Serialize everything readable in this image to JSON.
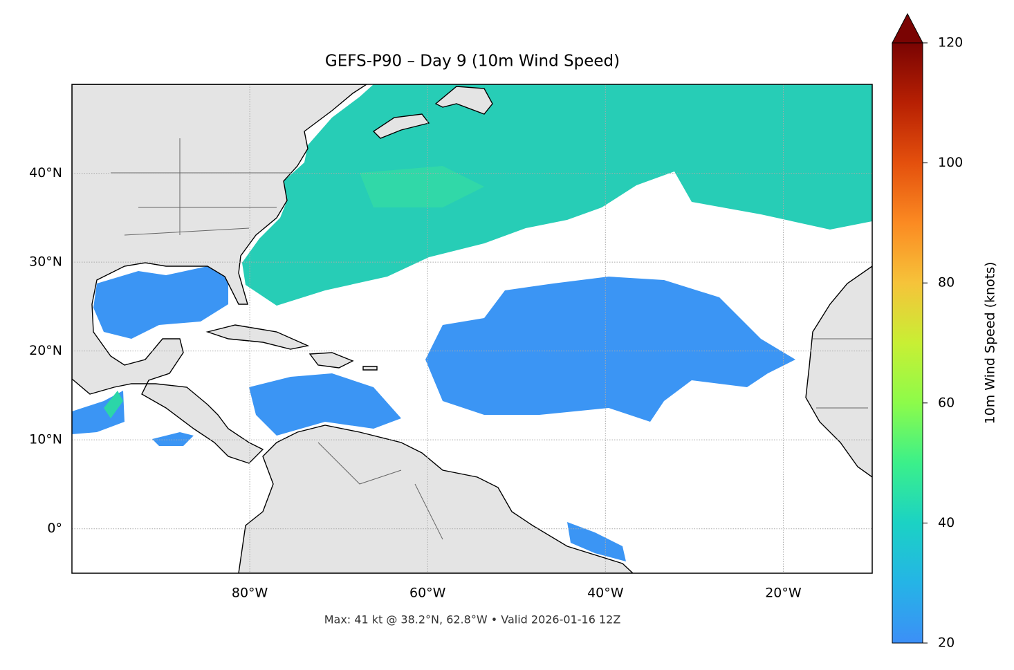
{
  "chart_data": {
    "type": "map",
    "title": "GEFS-P90 – Day 9 (10m Wind Speed)",
    "footnote": "Max: 41 kt @ 38.2°N, 62.8°W • Valid 2026-01-16 12Z",
    "xlim": [
      -100,
      -10
    ],
    "ylim": [
      -5,
      50
    ],
    "xticks": [
      {
        "value": -80,
        "label": "80°W"
      },
      {
        "value": -60,
        "label": "60°W"
      },
      {
        "value": -40,
        "label": "40°W"
      },
      {
        "value": -20,
        "label": "20°W"
      }
    ],
    "yticks": [
      {
        "value": 0,
        "label": "0°"
      },
      {
        "value": 10,
        "label": "10°N"
      },
      {
        "value": 20,
        "label": "20°N"
      },
      {
        "value": 30,
        "label": "30°N"
      },
      {
        "value": 40,
        "label": "40°N"
      }
    ],
    "grid": true,
    "colorbar": {
      "label": "10m Wind Speed (knots)",
      "lim": [
        20,
        120
      ],
      "ticks": [
        20,
        40,
        60,
        80,
        100,
        120
      ],
      "extend": "max"
    }
  }
}
